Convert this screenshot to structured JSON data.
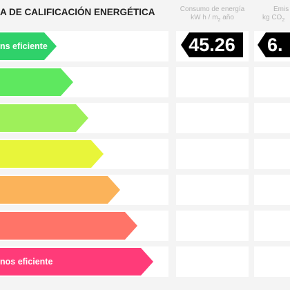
{
  "header": {
    "title": "A DE CALIFICACIÓN ENERGÉTICA",
    "col_energy_line1": "Consumo de energía",
    "col_energy_line2a": "kW h / m",
    "col_energy_sub": "2",
    "col_energy_line2b": " año",
    "col_emis_line1": "Emis",
    "col_emis_line2a": "kg CO",
    "col_emis_sub": "2"
  },
  "rating_bars": [
    {
      "label": "ns eficiente",
      "color": "#2fd16a"
    },
    {
      "label": "",
      "color": "#5ee85f"
    },
    {
      "label": "",
      "color": "#9ef05a"
    },
    {
      "label": "",
      "color": "#e8f53a"
    },
    {
      "label": "",
      "color": "#fbb35a"
    },
    {
      "label": "",
      "color": "#ff7468"
    },
    {
      "label": "nos eficiente",
      "color": "#ff3b79"
    }
  ],
  "values": {
    "energy_consumption": "45.26",
    "emissions": "6."
  }
}
